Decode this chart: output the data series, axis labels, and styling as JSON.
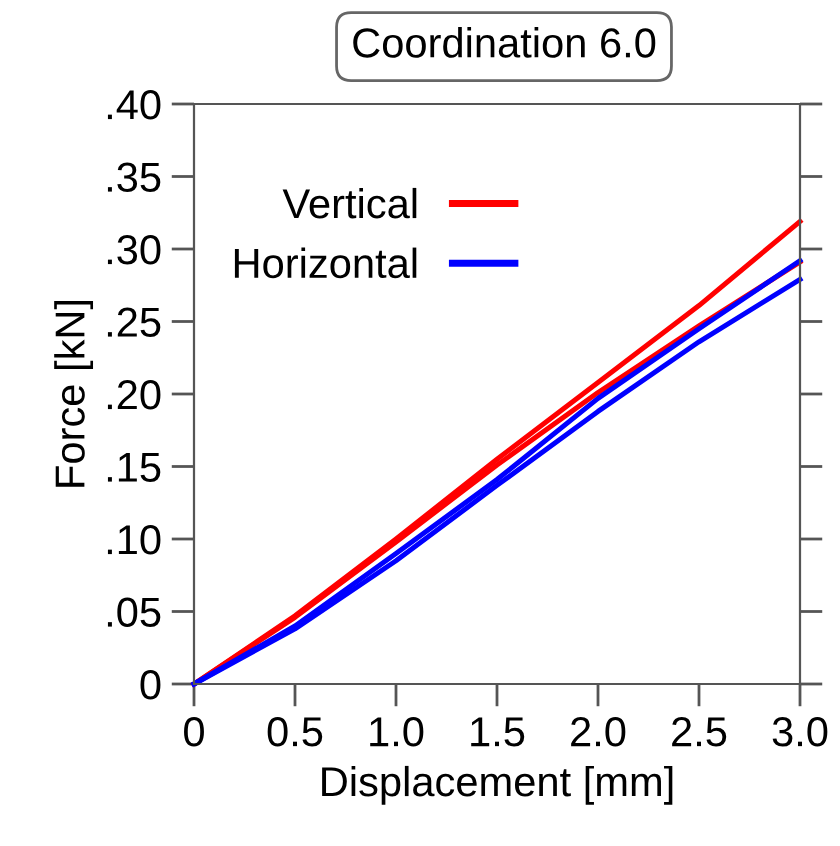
{
  "chart_data": {
    "type": "line",
    "title": "Coordination 6.0",
    "xlabel": "Displacement [mm]",
    "ylabel": "Force [kN]",
    "xlim": [
      0,
      3.0
    ],
    "ylim": [
      0,
      0.4
    ],
    "xticks": [
      0,
      {
        "value": 0.5,
        "label": "0.5"
      },
      {
        "value": 1.0,
        "label": "1.0"
      },
      {
        "value": 1.5,
        "label": "1.5"
      },
      {
        "value": 2.0,
        "label": "2.0"
      },
      {
        "value": 2.5,
        "label": "2.5"
      },
      {
        "value": 3.0,
        "label": "3.0"
      }
    ],
    "yticks": [
      0,
      {
        "value": 0.05,
        "label": ".05"
      },
      {
        "value": 0.1,
        "label": ".10"
      },
      {
        "value": 0.15,
        "label": ".15"
      },
      {
        "value": 0.2,
        "label": ".20"
      },
      {
        "value": 0.25,
        "label": ".25"
      },
      {
        "value": 0.3,
        "label": ".30"
      },
      {
        "value": 0.35,
        "label": ".35"
      },
      {
        "value": 0.4,
        "label": ".40"
      }
    ],
    "x": [
      0,
      0.5,
      1.0,
      1.5,
      2.0,
      2.5,
      3.0
    ],
    "series": [
      {
        "name": "Vertical",
        "color": "#ff0000",
        "values": [
          0,
          0.047,
          0.1,
          0.155,
          0.208,
          0.261,
          0.319
        ]
      },
      {
        "color": "#ff0000",
        "values": [
          0,
          0.046,
          0.098,
          0.151,
          0.201,
          0.247,
          0.291
        ]
      },
      {
        "name": "Horizontal",
        "color": "#0000ff",
        "values": [
          0,
          0.04,
          0.09,
          0.141,
          0.197,
          0.245,
          0.292
        ]
      },
      {
        "color": "#0000ff",
        "values": [
          0,
          0.038,
          0.085,
          0.137,
          0.188,
          0.236,
          0.279
        ]
      }
    ],
    "legend": "top left",
    "grid": false,
    "marker": "none",
    "line_style": "solid"
  }
}
